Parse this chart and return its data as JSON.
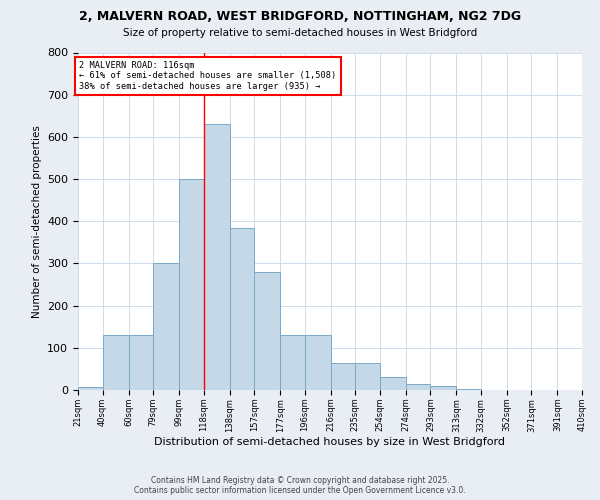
{
  "title": "2, MALVERN ROAD, WEST BRIDGFORD, NOTTINGHAM, NG2 7DG",
  "subtitle": "Size of property relative to semi-detached houses in West Bridgford",
  "xlabel": "Distribution of semi-detached houses by size in West Bridgford",
  "ylabel": "Number of semi-detached properties",
  "bins": [
    21,
    40,
    60,
    79,
    99,
    118,
    138,
    157,
    177,
    196,
    216,
    235,
    254,
    274,
    293,
    313,
    332,
    352,
    371,
    391,
    410
  ],
  "counts": [
    8,
    130,
    130,
    300,
    500,
    630,
    385,
    280,
    130,
    130,
    65,
    65,
    30,
    15,
    10,
    2,
    0,
    0,
    0,
    0
  ],
  "bar_color": "#c5d8e8",
  "bar_edge_color": "#7aaac8",
  "property_line_x": 118,
  "property_sqm": 116,
  "pct_smaller": 61,
  "count_smaller": 1508,
  "pct_larger": 38,
  "count_larger": 935,
  "annotation_label": "2 MALVERN ROAD: 116sqm",
  "ylim": [
    0,
    800
  ],
  "yticks": [
    0,
    100,
    200,
    300,
    400,
    500,
    600,
    700,
    800
  ],
  "footer_line1": "Contains HM Land Registry data © Crown copyright and database right 2025.",
  "footer_line2": "Contains public sector information licensed under the Open Government Licence v3.0.",
  "background_color": "#e8eef4",
  "plot_bg_color": "#ffffff"
}
